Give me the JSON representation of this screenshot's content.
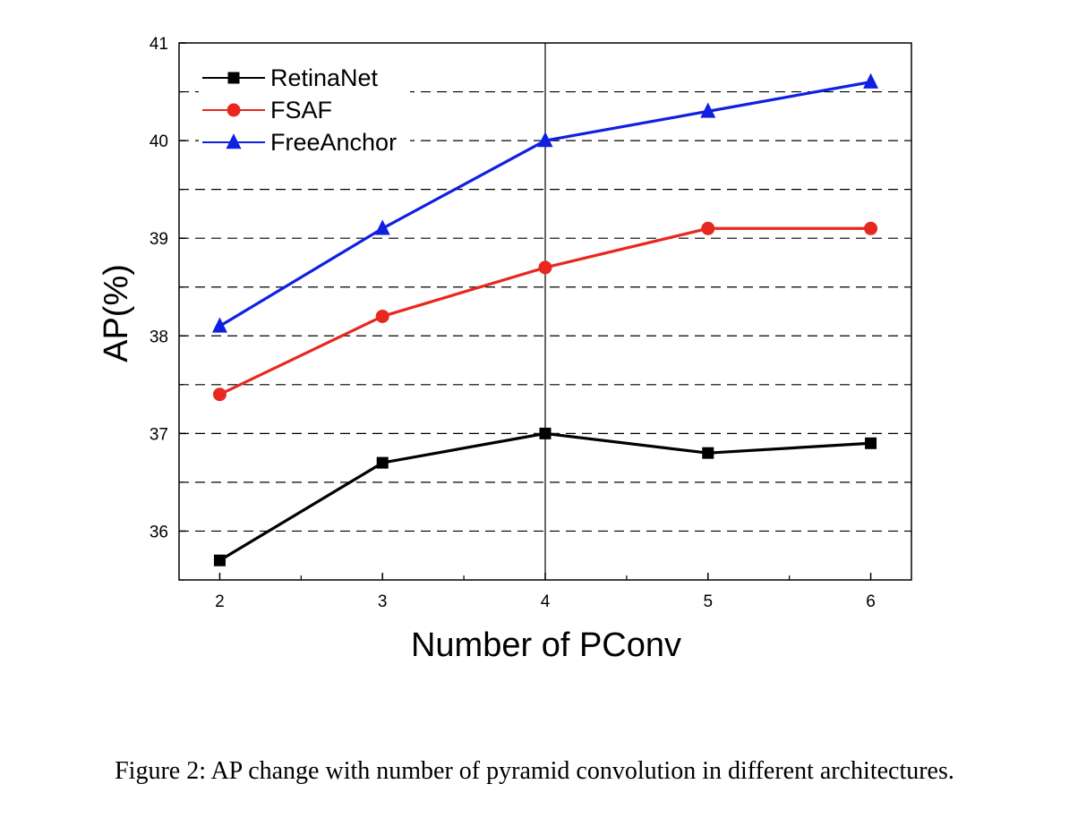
{
  "chart_data": {
    "type": "line",
    "x": [
      2,
      3,
      4,
      5,
      6
    ],
    "series": [
      {
        "name": "RetinaNet",
        "values": [
          35.7,
          36.7,
          37.0,
          36.8,
          36.9
        ],
        "color": "#000000",
        "marker": "square"
      },
      {
        "name": "FSAF",
        "values": [
          37.4,
          38.2,
          38.7,
          39.1,
          39.1
        ],
        "color": "#e8281e",
        "marker": "circle"
      },
      {
        "name": "FreeAnchor",
        "values": [
          38.1,
          39.1,
          40.0,
          40.3,
          40.6
        ],
        "color": "#1020e0",
        "marker": "triangle"
      }
    ],
    "xlabel": "Number of PConv",
    "ylabel": "AP(%)",
    "xlim": [
      1.75,
      6.25
    ],
    "ylim": [
      35.5,
      41
    ],
    "x_ticks": [
      "2",
      "3",
      "4",
      "5",
      "6"
    ],
    "y_ticks": [
      "36",
      "37",
      "38",
      "39",
      "40",
      "41"
    ],
    "grid": "horizontal dashed",
    "legend_position": "top-left"
  },
  "caption": "Figure 2: AP change with number of pyramid convolution in different architectures."
}
